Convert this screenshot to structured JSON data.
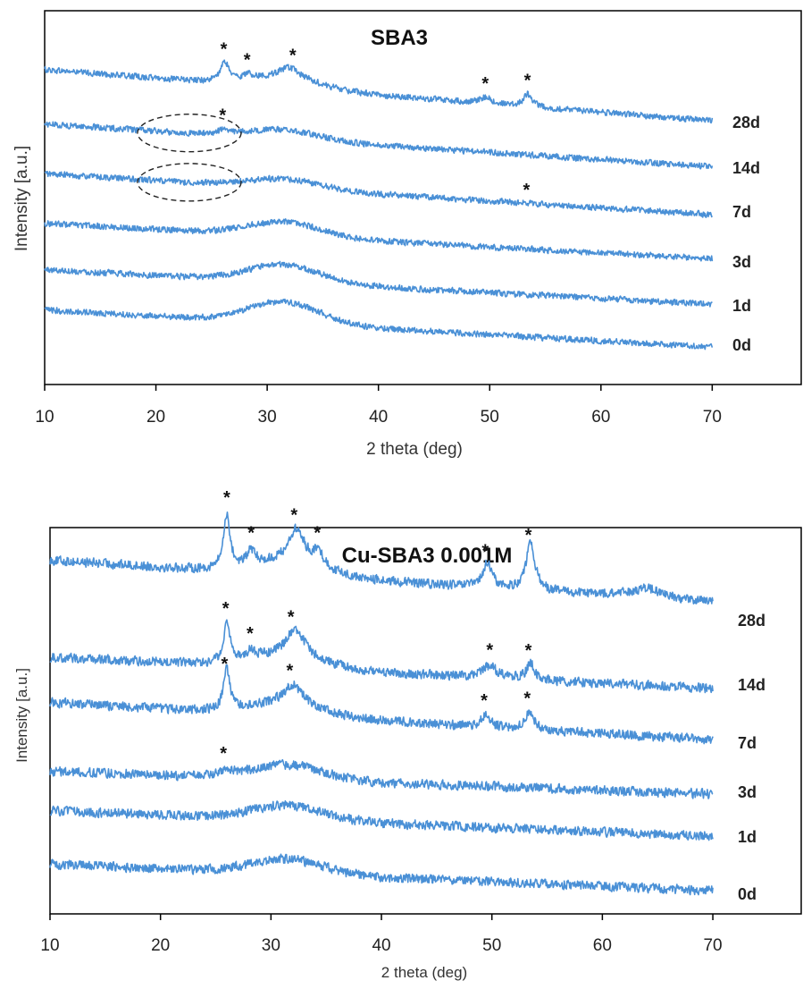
{
  "chart_data": [
    {
      "type": "line",
      "title": "SBA3",
      "xlabel": "2 theta (deg)",
      "ylabel": "Intensity [a.u.]",
      "xlim": [
        10,
        70
      ],
      "x_axis_max": 78,
      "x_ticks": [
        10,
        20,
        30,
        40,
        50,
        60,
        70
      ],
      "series": [
        {
          "name": "28d",
          "start": 0.91,
          "end": 0.26,
          "amorphous_hump": 0.12,
          "peaks": [
            {
              "x": 26.2,
              "h": 0.24,
              "w": 0.45
            },
            {
              "x": 28.3,
              "h": 0.06,
              "w": 0.5
            },
            {
              "x": 32.0,
              "h": 0.14,
              "w": 1.2
            },
            {
              "x": 49.6,
              "h": 0.08,
              "w": 0.6
            },
            {
              "x": 53.4,
              "h": 0.16,
              "w": 0.45
            }
          ]
        },
        {
          "name": "14d",
          "start": 0.56,
          "end": 0.02,
          "amorphous_hump": 0.12,
          "peaks": [
            {
              "x": 26.1,
              "h": 0.06,
              "w": 0.5
            }
          ]
        },
        {
          "name": "7d",
          "start": 0.52,
          "end": 0.0,
          "amorphous_hump": 0.12,
          "peaks": []
        },
        {
          "name": "3d",
          "start": 0.48,
          "end": 0.03,
          "amorphous_hump": 0.18,
          "peaks": []
        },
        {
          "name": "1d",
          "start": 0.46,
          "end": 0.02,
          "amorphous_hump": 0.22,
          "peaks": []
        },
        {
          "name": "0d",
          "start": 0.47,
          "end": 0.0,
          "amorphous_hump": 0.27,
          "peaks": []
        }
      ],
      "peak_marker": "*",
      "peak_markers": [
        {
          "series": "28d",
          "x": 26.1
        },
        {
          "series": "28d",
          "x": 28.2
        },
        {
          "series": "28d",
          "x": 32.3
        },
        {
          "series": "28d",
          "x": 49.6
        },
        {
          "series": "28d",
          "x": 53.4
        },
        {
          "series": "14d",
          "x": 26.0
        },
        {
          "series": "7d",
          "x": 53.3
        }
      ],
      "highlight_ellipses": [
        {
          "series": "14d",
          "x_center": 23.0
        },
        {
          "series": "7d",
          "x_center": 23.0
        }
      ]
    },
    {
      "type": "line",
      "title": "Cu-SBA3 0.001M",
      "xlabel": "2 theta (deg)",
      "ylabel": "Intensity [a.u.]",
      "xlim": [
        10,
        70
      ],
      "x_axis_max": 78,
      "x_ticks": [
        10,
        20,
        30,
        40,
        50,
        60,
        70
      ],
      "series": [
        {
          "name": "28d",
          "start": 0.47,
          "end": 0.12,
          "amorphous_hump": 0.1,
          "peaks": [
            {
              "x": 26.0,
              "h": 0.45,
              "w": 0.35
            },
            {
              "x": 28.2,
              "h": 0.12,
              "w": 0.45
            },
            {
              "x": 32.3,
              "h": 0.28,
              "w": 0.9
            },
            {
              "x": 34.3,
              "h": 0.12,
              "w": 0.6
            },
            {
              "x": 49.6,
              "h": 0.2,
              "w": 0.5
            },
            {
              "x": 53.5,
              "h": 0.38,
              "w": 0.5
            },
            {
              "x": 64.0,
              "h": 0.08,
              "w": 1.8
            }
          ]
        },
        {
          "name": "14d",
          "start": 0.26,
          "end": 0.0,
          "amorphous_hump": 0.1,
          "peaks": [
            {
              "x": 26.0,
              "h": 0.34,
              "w": 0.35
            },
            {
              "x": 28.2,
              "h": 0.07,
              "w": 0.5
            },
            {
              "x": 32.2,
              "h": 0.23,
              "w": 1.0
            },
            {
              "x": 49.8,
              "h": 0.1,
              "w": 0.8
            },
            {
              "x": 53.5,
              "h": 0.13,
              "w": 0.45
            }
          ]
        },
        {
          "name": "7d",
          "start": 0.33,
          "end": 0.02,
          "amorphous_hump": 0.1,
          "peaks": [
            {
              "x": 26.0,
              "h": 0.33,
              "w": 0.35
            },
            {
              "x": 32.0,
              "h": 0.16,
              "w": 1.0
            },
            {
              "x": 49.4,
              "h": 0.09,
              "w": 0.5
            },
            {
              "x": 53.4,
              "h": 0.15,
              "w": 0.45
            }
          ]
        },
        {
          "name": "3d",
          "start": 0.19,
          "end": 0.0,
          "amorphous_hump": 0.12,
          "peaks": [
            {
              "x": 26.0,
              "h": 0.06,
              "w": 0.5
            }
          ]
        },
        {
          "name": "1d",
          "start": 0.21,
          "end": 0.0,
          "amorphous_hump": 0.12,
          "peaks": []
        },
        {
          "name": "0d",
          "start": 0.22,
          "end": 0.0,
          "amorphous_hump": 0.12,
          "peaks": []
        }
      ],
      "peak_marker": "*",
      "peak_markers": [
        {
          "series": "28d",
          "x": 26.0
        },
        {
          "series": "28d",
          "x": 28.2
        },
        {
          "series": "28d",
          "x": 32.1
        },
        {
          "series": "28d",
          "x": 34.2
        },
        {
          "series": "28d",
          "x": 49.4
        },
        {
          "series": "28d",
          "x": 53.3
        },
        {
          "series": "14d",
          "x": 25.9
        },
        {
          "series": "14d",
          "x": 28.1
        },
        {
          "series": "14d",
          "x": 31.8
        },
        {
          "series": "14d",
          "x": 49.8
        },
        {
          "series": "14d",
          "x": 53.3
        },
        {
          "series": "7d",
          "x": 25.8
        },
        {
          "series": "7d",
          "x": 31.7
        },
        {
          "series": "7d",
          "x": 49.3
        },
        {
          "series": "7d",
          "x": 53.2
        },
        {
          "series": "3d",
          "x": 25.7
        }
      ]
    }
  ],
  "colors": {
    "trace": "#4a90d6",
    "axis": "#000000",
    "text": "#222222",
    "ellipse": "#222222"
  }
}
